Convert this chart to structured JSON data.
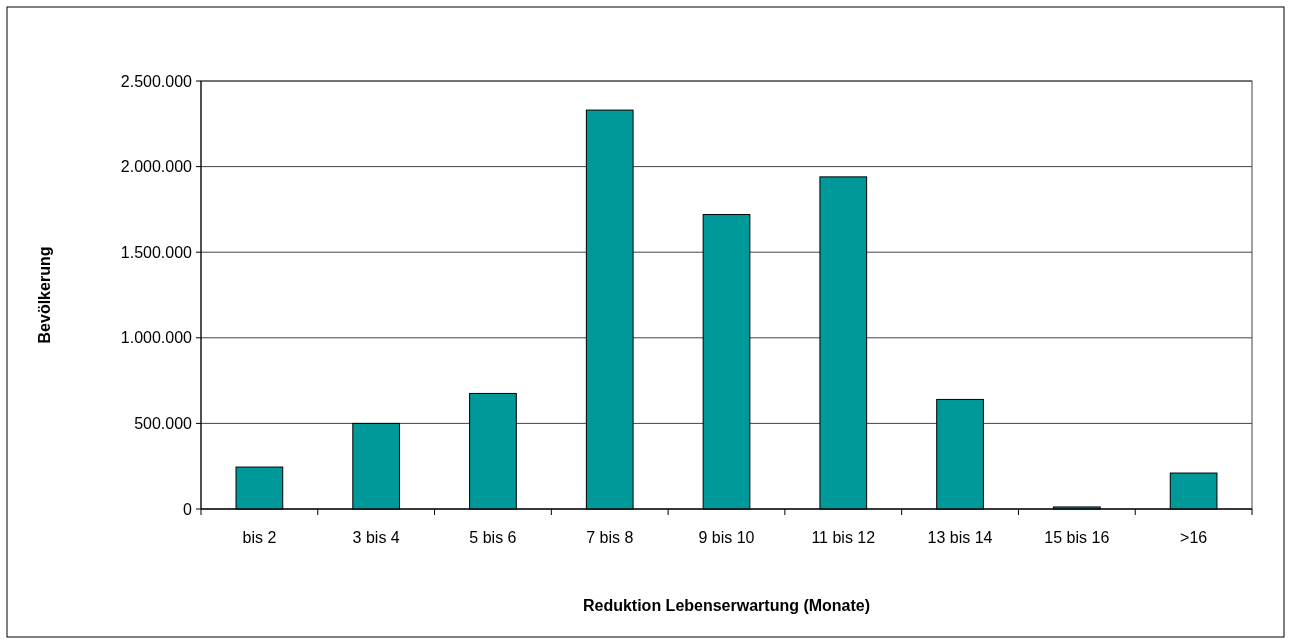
{
  "chart_data": {
    "type": "bar",
    "xlabel": "Reduktion Lebenserwartung (Monate)",
    "ylabel": "Bevölkerung",
    "categories": [
      "bis 2",
      "3 bis 4",
      "5 bis 6",
      "7 bis 8",
      "9 bis 10",
      "11 bis 12",
      "13 bis 14",
      "15 bis 16",
      ">16"
    ],
    "values": [
      245000,
      500000,
      675000,
      2330000,
      1720000,
      1940000,
      640000,
      12000,
      210000
    ],
    "color": "#009999",
    "ylim": [
      0,
      2500000
    ],
    "yticks": [
      {
        "value": 0,
        "label": "0"
      },
      {
        "value": 500000,
        "label": "500.000"
      },
      {
        "value": 1000000,
        "label": "1.000.000"
      },
      {
        "value": 1500000,
        "label": "1.500.000"
      },
      {
        "value": 2000000,
        "label": "2.000.000"
      },
      {
        "value": 2500000,
        "label": "2.500.000"
      }
    ],
    "grid": "y"
  }
}
